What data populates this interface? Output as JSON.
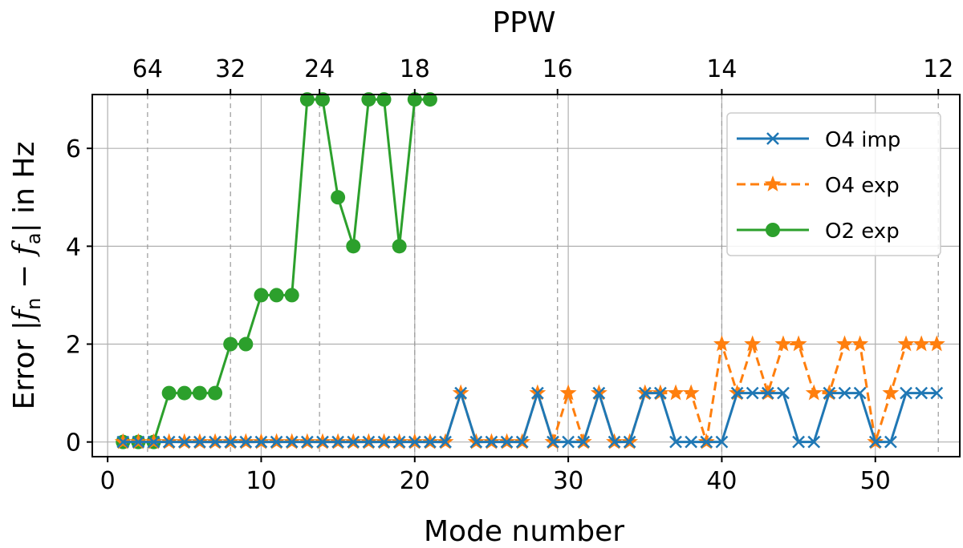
{
  "chart_data": {
    "type": "line",
    "xlabel": "Mode number",
    "ylabel_parts": {
      "prefix": "Error |",
      "fn_var": "f",
      "fn_sub": "n",
      "minus": " − ",
      "fa_var": "f",
      "fa_sub": "a",
      "suffix": "| in Hz"
    },
    "top_xlabel": "PPW",
    "xlim": [
      -1,
      55.5
    ],
    "ylim": [
      -0.3,
      7.1
    ],
    "xticks": [
      0,
      10,
      20,
      30,
      40,
      50
    ],
    "yticks": [
      0,
      2,
      4,
      6
    ],
    "top_ticks": [
      {
        "x": 2.6,
        "label": "64"
      },
      {
        "x": 8.0,
        "label": "32"
      },
      {
        "x": 13.8,
        "label": "24"
      },
      {
        "x": 20.0,
        "label": "18"
      },
      {
        "x": 29.3,
        "label": "16"
      },
      {
        "x": 40.0,
        "label": "14"
      },
      {
        "x": 54.1,
        "label": "12"
      }
    ],
    "grid": true,
    "legend_position": "top-right",
    "series": [
      {
        "name": "O4 imp",
        "color": "#1f77b4",
        "marker": "x",
        "linestyle": "solid",
        "x": [
          1,
          2,
          3,
          4,
          5,
          6,
          7,
          8,
          9,
          10,
          11,
          12,
          13,
          14,
          15,
          16,
          17,
          18,
          19,
          20,
          21,
          22,
          23,
          24,
          25,
          26,
          27,
          28,
          29,
          30,
          31,
          32,
          33,
          34,
          35,
          36,
          37,
          38,
          39,
          40,
          41,
          42,
          43,
          44,
          45,
          46,
          47,
          48,
          49,
          50,
          51,
          52,
          53,
          54
        ],
        "y": [
          0,
          0,
          0,
          0,
          0,
          0,
          0,
          0,
          0,
          0,
          0,
          0,
          0,
          0,
          0,
          0,
          0,
          0,
          0,
          0,
          0,
          0,
          1,
          0,
          0,
          0,
          0,
          1,
          0,
          0,
          0,
          1,
          0,
          0,
          1,
          1,
          0,
          0,
          0,
          0,
          1,
          1,
          1,
          1,
          0,
          0,
          1,
          1,
          1,
          0,
          0,
          1,
          1,
          1
        ]
      },
      {
        "name": "O4 exp",
        "color": "#ff7f0e",
        "marker": "star",
        "linestyle": "dashed",
        "x": [
          1,
          2,
          3,
          4,
          5,
          6,
          7,
          8,
          9,
          10,
          11,
          12,
          13,
          14,
          15,
          16,
          17,
          18,
          19,
          20,
          21,
          22,
          23,
          24,
          25,
          26,
          27,
          28,
          29,
          30,
          31,
          32,
          33,
          34,
          35,
          36,
          37,
          38,
          39,
          40,
          41,
          42,
          43,
          44,
          45,
          46,
          47,
          48,
          49,
          50,
          51,
          52,
          53,
          54
        ],
        "y": [
          0,
          0,
          0,
          0,
          0,
          0,
          0,
          0,
          0,
          0,
          0,
          0,
          0,
          0,
          0,
          0,
          0,
          0,
          0,
          0,
          0,
          0,
          1,
          0,
          0,
          0,
          0,
          1,
          0,
          1,
          0,
          1,
          0,
          0,
          1,
          1,
          1,
          1,
          0,
          2,
          1,
          2,
          1,
          2,
          2,
          1,
          1,
          2,
          2,
          0,
          1,
          2,
          2,
          2
        ]
      },
      {
        "name": "O2 exp",
        "color": "#2ca02c",
        "marker": "circle",
        "linestyle": "solid",
        "x": [
          1,
          2,
          3,
          4,
          5,
          6,
          7,
          8,
          9,
          10,
          11,
          12,
          13,
          14,
          15,
          16,
          17,
          18,
          19,
          20,
          21
        ],
        "y": [
          0,
          0,
          0,
          1,
          1,
          1,
          1,
          2,
          2,
          3,
          3,
          3,
          7,
          7,
          5,
          4,
          7,
          7,
          4,
          7,
          7
        ]
      }
    ]
  }
}
